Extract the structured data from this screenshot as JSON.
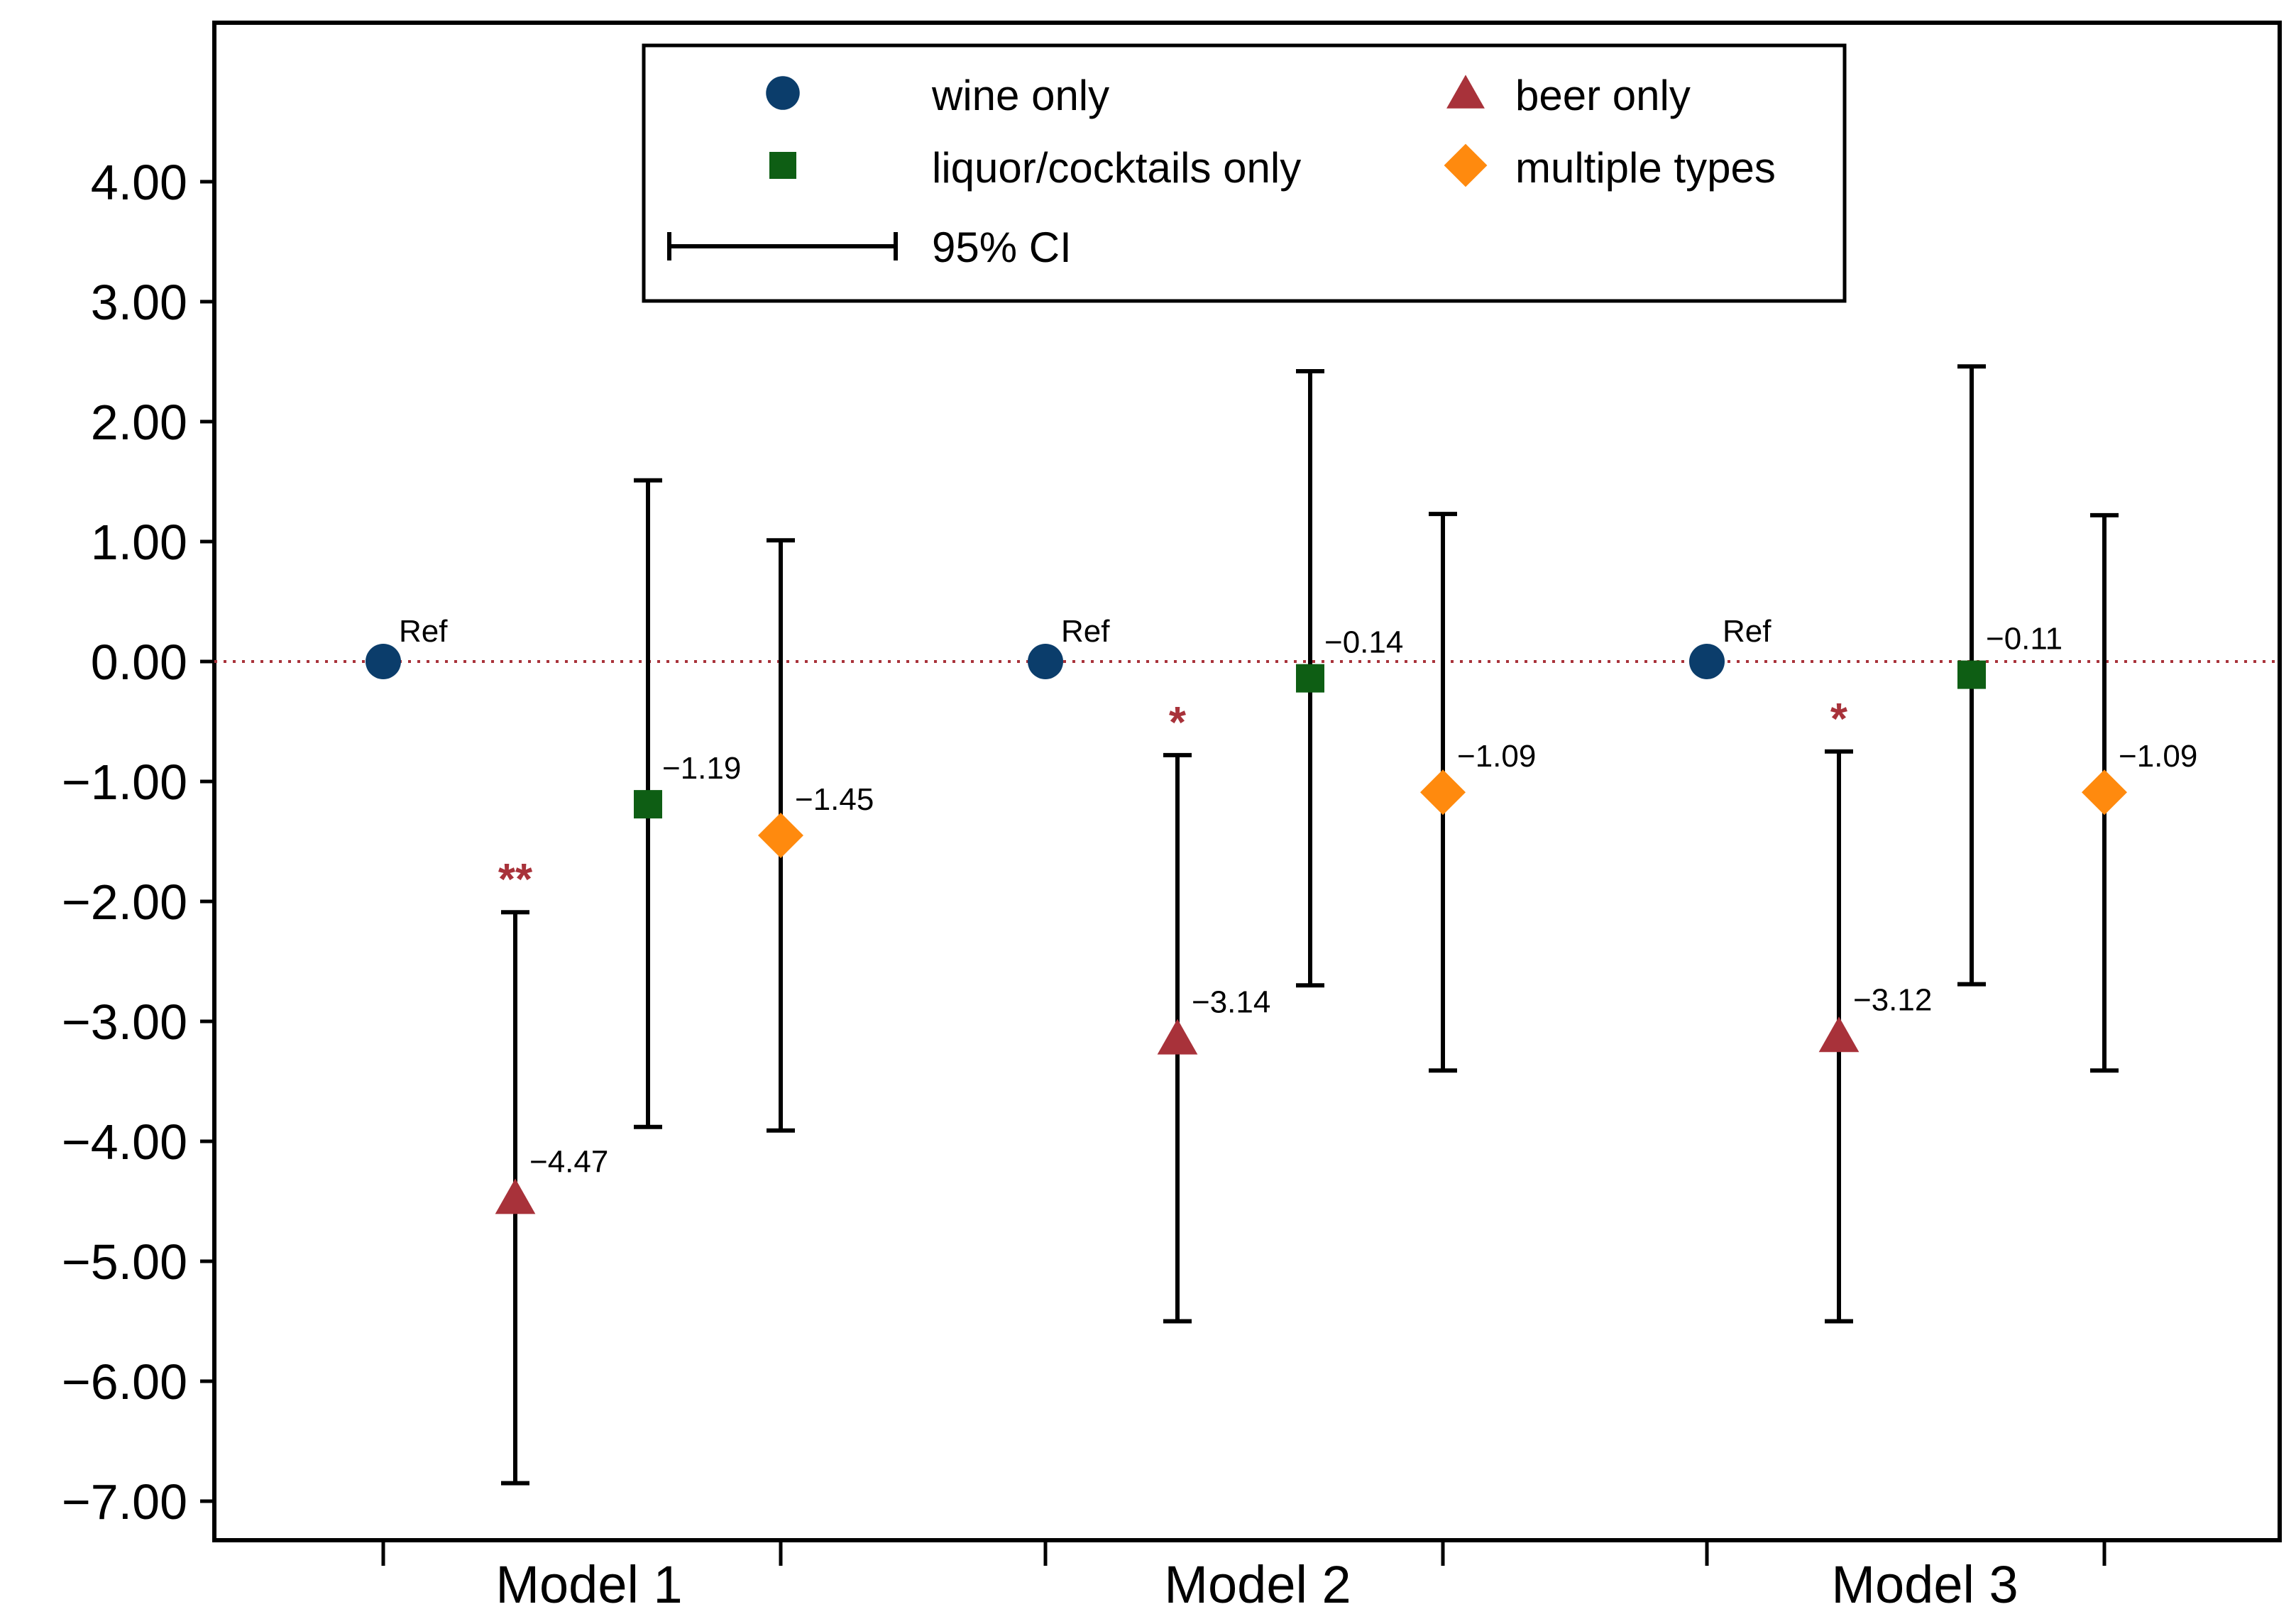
{
  "chart_data": {
    "type": "scatter",
    "title": "",
    "xlabel": "",
    "ylabel": "",
    "ylim": [
      -7.3,
      5.2
    ],
    "yticks": [
      "4.00",
      "3.00",
      "2.00",
      "1.00",
      "0.00",
      "−1.00",
      "−2.00",
      "−3.00",
      "−4.00",
      "−5.00",
      "−6.00",
      "−7.00"
    ],
    "ytick_values": [
      4,
      3,
      2,
      1,
      0,
      -1,
      -2,
      -3,
      -4,
      -5,
      -6,
      -7
    ],
    "categories": [
      "Model 1",
      "Model 2",
      "Model 3"
    ],
    "reference_line": {
      "y": 0,
      "style": "dotted",
      "color": "#a8323a"
    },
    "grid": false,
    "legend_position": "top-center",
    "ci_legend_label": "95% CI",
    "series": [
      {
        "name": "wine only",
        "marker": "circle",
        "color": "#0b3d6b",
        "points": [
          {
            "model": "Model 1",
            "y": 0,
            "label": "Ref"
          },
          {
            "model": "Model 2",
            "y": 0,
            "label": "Ref"
          },
          {
            "model": "Model 3",
            "y": 0,
            "label": "Ref"
          }
        ]
      },
      {
        "name": "beer only",
        "marker": "triangle",
        "color": "#a8323a",
        "points": [
          {
            "model": "Model 1",
            "y": -4.47,
            "ci": [
              -6.85,
              -2.09
            ],
            "label": "−4.47",
            "sig": "**"
          },
          {
            "model": "Model 2",
            "y": -3.14,
            "ci": [
              -5.5,
              -0.78
            ],
            "label": "−3.14",
            "sig": "*"
          },
          {
            "model": "Model 3",
            "y": -3.12,
            "ci": [
              -5.5,
              -0.75
            ],
            "label": "−3.12",
            "sig": "*"
          }
        ]
      },
      {
        "name": "liquor/cocktails only",
        "marker": "square",
        "color": "#0e5e14",
        "points": [
          {
            "model": "Model 1",
            "y": -1.19,
            "ci": [
              -3.88,
              1.51
            ],
            "label": "−1.19"
          },
          {
            "model": "Model 2",
            "y": -0.14,
            "ci": [
              -2.7,
              2.42
            ],
            "label": "−0.14"
          },
          {
            "model": "Model 3",
            "y": -0.11,
            "ci": [
              -2.69,
              2.46
            ],
            "label": "−0.11"
          }
        ]
      },
      {
        "name": "multiple types",
        "marker": "diamond",
        "color": "#ff8a0e",
        "points": [
          {
            "model": "Model 1",
            "y": -1.45,
            "ci": [
              -3.91,
              1.01
            ],
            "label": "−1.45"
          },
          {
            "model": "Model 2",
            "y": -1.09,
            "ci": [
              -3.41,
              1.23
            ],
            "label": "−1.09"
          },
          {
            "model": "Model 3",
            "y": -1.09,
            "ci": [
              -3.41,
              1.22
            ],
            "label": "−1.09"
          }
        ]
      }
    ]
  }
}
